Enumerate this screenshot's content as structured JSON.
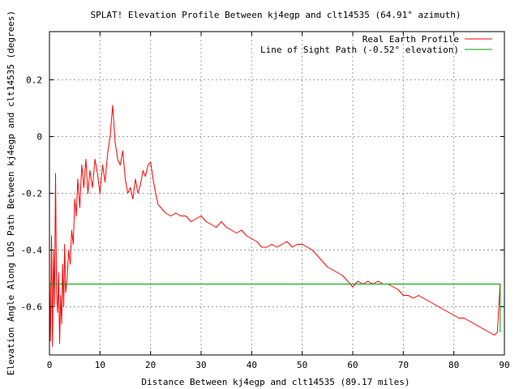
{
  "chart_data": {
    "type": "line",
    "title": "SPLAT! Elevation Profile Between kj4egp and clt14535 (64.91° azimuth)",
    "xlabel": "Distance Between kj4egp and clt14535 (89.17 miles)",
    "ylabel": "Elevation Angle Along LOS Path Between kj4egp and clt14535 (degrees)",
    "xlim": [
      0,
      90
    ],
    "ylim": [
      -0.77,
      0.37
    ],
    "xticks": [
      0,
      10,
      20,
      30,
      40,
      50,
      60,
      70,
      80,
      90
    ],
    "yticks": [
      0.2,
      0,
      -0.2,
      -0.4,
      -0.6
    ],
    "ytick_labels": [
      "0.2",
      "0",
      "-0.2",
      "-0.4",
      "-0.6"
    ],
    "grid": true,
    "legend_position": "top-right",
    "series": [
      {
        "name": "Real Earth Profile",
        "color": "#ff0000",
        "x": [
          0,
          0.2,
          0.4,
          0.6,
          0.8,
          1.0,
          1.2,
          1.4,
          1.6,
          1.8,
          2.0,
          2.2,
          2.4,
          2.6,
          2.8,
          3.0,
          3.2,
          3.5,
          3.8,
          4.1,
          4.4,
          4.7,
          5.0,
          5.3,
          5.6,
          6.0,
          6.4,
          6.8,
          7.2,
          7.6,
          8.0,
          8.5,
          9.0,
          9.5,
          10.0,
          10.5,
          11.0,
          11.5,
          12.0,
          12.5,
          13.0,
          13.5,
          14.0,
          14.5,
          15.0,
          15.5,
          16.0,
          16.5,
          17.0,
          17.5,
          18.0,
          18.5,
          19.0,
          19.5,
          20.0,
          20.5,
          21.0,
          21.5,
          22.0,
          23.0,
          24.0,
          25.0,
          26.0,
          27.0,
          28.0,
          29.0,
          30.0,
          31.0,
          32.0,
          33.0,
          34.0,
          35.0,
          36.0,
          37.0,
          38.0,
          39.0,
          40.0,
          41.0,
          42.0,
          43.0,
          44.0,
          45.0,
          46.0,
          47.0,
          48.0,
          49.0,
          50.0,
          51.0,
          52.0,
          53.0,
          54.0,
          55.0,
          56.0,
          57.0,
          58.0,
          59.0,
          60.0,
          61.0,
          62.0,
          63.0,
          64.0,
          65.0,
          66.0,
          67.0,
          68.0,
          69.0,
          70.0,
          71.0,
          72.0,
          73.0,
          74.0,
          75.0,
          76.0,
          77.0,
          78.0,
          79.0,
          80.0,
          81.0,
          82.0,
          83.0,
          84.0,
          85.0,
          86.0,
          87.0,
          88.0,
          88.6,
          89.17
        ],
        "y": [
          -0.5,
          -0.72,
          -0.35,
          -0.74,
          -0.4,
          -0.6,
          -0.13,
          -0.55,
          -0.62,
          -0.48,
          -0.73,
          -0.56,
          -0.66,
          -0.45,
          -0.6,
          -0.38,
          -0.55,
          -0.5,
          -0.4,
          -0.45,
          -0.33,
          -0.38,
          -0.22,
          -0.28,
          -0.15,
          -0.25,
          -0.1,
          -0.18,
          -0.08,
          -0.2,
          -0.12,
          -0.18,
          -0.08,
          -0.13,
          -0.2,
          -0.1,
          -0.16,
          -0.06,
          0.0,
          0.11,
          -0.02,
          -0.08,
          -0.1,
          -0.05,
          -0.15,
          -0.2,
          -0.18,
          -0.22,
          -0.15,
          -0.2,
          -0.17,
          -0.12,
          -0.14,
          -0.1,
          -0.09,
          -0.15,
          -0.2,
          -0.24,
          -0.25,
          -0.27,
          -0.28,
          -0.27,
          -0.28,
          -0.28,
          -0.3,
          -0.29,
          -0.28,
          -0.3,
          -0.31,
          -0.32,
          -0.3,
          -0.32,
          -0.33,
          -0.34,
          -0.33,
          -0.35,
          -0.36,
          -0.37,
          -0.39,
          -0.39,
          -0.38,
          -0.39,
          -0.38,
          -0.37,
          -0.39,
          -0.38,
          -0.38,
          -0.39,
          -0.4,
          -0.42,
          -0.44,
          -0.46,
          -0.47,
          -0.48,
          -0.49,
          -0.51,
          -0.53,
          -0.51,
          -0.52,
          -0.51,
          -0.52,
          -0.51,
          -0.52,
          -0.52,
          -0.53,
          -0.54,
          -0.56,
          -0.56,
          -0.57,
          -0.56,
          -0.57,
          -0.58,
          -0.59,
          -0.6,
          -0.61,
          -0.62,
          -0.63,
          -0.64,
          -0.64,
          -0.65,
          -0.66,
          -0.67,
          -0.68,
          -0.69,
          -0.7,
          -0.69,
          -0.52
        ]
      },
      {
        "name": "Line of Sight Path (-0.52° elevation)",
        "color": "#00a000",
        "x": [
          0,
          89.17,
          89.17
        ],
        "y": [
          -0.52,
          -0.52,
          -0.69
        ]
      }
    ]
  }
}
